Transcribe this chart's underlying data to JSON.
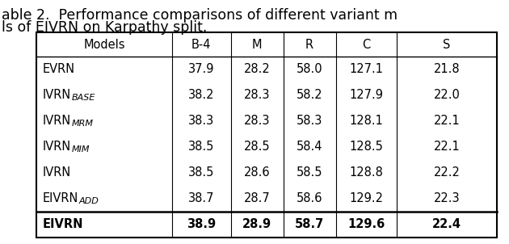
{
  "title_line1": "able 2.  Performance comparisons of different variant m",
  "title_line2": "ls of EIVRN on Karpathy split.",
  "headers": [
    "Models",
    "B-4",
    "M",
    "R",
    "C",
    "S"
  ],
  "rows": [
    [
      [
        "EVRN",
        ""
      ],
      "37.9",
      "28.2",
      "58.0",
      "127.1",
      "21.8"
    ],
    [
      [
        "IVRN",
        "BASE"
      ],
      "38.2",
      "28.3",
      "58.2",
      "127.9",
      "22.0"
    ],
    [
      [
        "IVRN",
        "MRM"
      ],
      "38.3",
      "28.3",
      "58.3",
      "128.1",
      "22.1"
    ],
    [
      [
        "IVRN",
        "MIM"
      ],
      "38.5",
      "28.5",
      "58.4",
      "128.5",
      "22.1"
    ],
    [
      [
        "IVRN",
        ""
      ],
      "38.5",
      "28.6",
      "58.5",
      "128.8",
      "22.2"
    ],
    [
      [
        "EIVRN",
        "ADD"
      ],
      "38.7",
      "28.7",
      "58.6",
      "129.2",
      "22.3"
    ],
    [
      [
        "EIVRN",
        ""
      ],
      "38.9",
      "28.9",
      "58.7",
      "129.6",
      "22.4"
    ]
  ],
  "font_size": 10.5,
  "title_font_size": 12.5
}
